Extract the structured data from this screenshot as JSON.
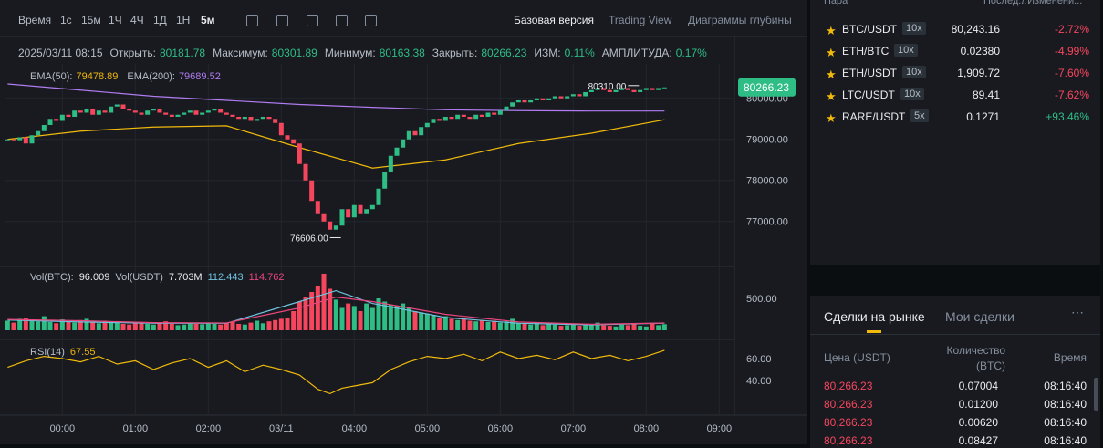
{
  "toolbar": {
    "intervals": [
      "Время",
      "1с",
      "15м",
      "1Ч",
      "4Ч",
      "1Д",
      "1Н",
      "5м"
    ],
    "views": [
      "Базовая версия",
      "Trading View",
      "Диаграммы глубины"
    ]
  },
  "ohlc": {
    "date": "2025/03/11 08:15",
    "items": [
      {
        "label": "Открыть:",
        "value": "80181.78"
      },
      {
        "label": "Максимум:",
        "value": "80301.89"
      },
      {
        "label": "Минимум:",
        "value": "80163.38"
      },
      {
        "label": "Закрыть:",
        "value": "80266.23"
      },
      {
        "label": "ИЗМ:",
        "value": "0.11%"
      },
      {
        "label": "АМПЛИТУДА:",
        "value": "0.17%"
      }
    ]
  },
  "chart_data": {
    "type": "candlestick",
    "ema": [
      {
        "name": "EMA(50):",
        "value_label": "79478.89",
        "color": "#f0b90b",
        "x": [
          0,
          12,
          24,
          36,
          48,
          60,
          72,
          84,
          96,
          108
        ],
        "values": [
          79000,
          79200,
          79300,
          79330,
          78800,
          78300,
          78500,
          78900,
          79150,
          79478.89
        ]
      },
      {
        "name": "EMA(200):",
        "value_label": "79689.52",
        "color": "#b07cf0",
        "x": [
          0,
          12,
          24,
          36,
          48,
          60,
          72,
          84,
          96,
          108
        ],
        "values": [
          80350,
          80200,
          80050,
          79950,
          79850,
          79780,
          79720,
          79700,
          79690,
          79689.52
        ]
      }
    ],
    "close": [
      79000,
      78980,
      79050,
      78900,
      79100,
      79200,
      79350,
      79500,
      79450,
      79600,
      79550,
      79700,
      79650,
      79750,
      79600,
      79700,
      79650,
      79800,
      79850,
      79750,
      79700,
      79650,
      79600,
      79700,
      79750,
      79650,
      79600,
      79550,
      79600,
      79650,
      79700,
      79600,
      79650,
      79700,
      79750,
      79650,
      79600,
      79550,
      79500,
      79550,
      79450,
      79500,
      79550,
      79500,
      79400,
      79100,
      79000,
      78900,
      78400,
      78000,
      77500,
      77200,
      77000,
      76800,
      76900,
      77300,
      77100,
      77400,
      77200,
      77300,
      77400,
      77800,
      78200,
      78600,
      78800,
      79000,
      79200,
      79100,
      79300,
      79400,
      79500,
      79450,
      79550,
      79500,
      79600,
      79550,
      79500,
      79600,
      79550,
      79650,
      79600,
      79700,
      79800,
      79900,
      79950,
      79900,
      79950,
      80000,
      79950,
      80000,
      80050,
      80000,
      80050,
      80100,
      80050,
      80150,
      80200,
      80250,
      80200,
      80150,
      80200,
      80250,
      80200,
      80150,
      80200,
      80250,
      80200,
      80250,
      80266.23
    ],
    "last_label": "80266.23",
    "annotations": [
      {
        "label": "80310.00",
        "value": 80310,
        "x": 102
      },
      {
        "label": "76606.00",
        "value": 76606,
        "x": 53
      }
    ],
    "xlim": [
      -0.5,
      119.5
    ],
    "xticks": [
      {
        "value": 9,
        "label": "00:00"
      },
      {
        "value": 21,
        "label": "01:00"
      },
      {
        "value": 33,
        "label": "02:00"
      },
      {
        "value": 45,
        "label": "03/11"
      },
      {
        "value": 57,
        "label": "04:00"
      },
      {
        "value": 69,
        "label": "05:00"
      },
      {
        "value": 81,
        "label": "06:00"
      },
      {
        "value": 93,
        "label": "07:00"
      },
      {
        "value": 105,
        "label": "08:00"
      },
      {
        "value": 117,
        "label": "09:00"
      }
    ],
    "ylim": [
      75950,
      81394
    ],
    "yticks": [
      {
        "value": 77000,
        "label": "77000.00"
      },
      {
        "value": 78000,
        "label": "78000.00"
      },
      {
        "value": 79000,
        "label": "79000.00"
      },
      {
        "value": 80000,
        "label": "80000.00"
      }
    ],
    "volume": {
      "title": "Vol(BTC):",
      "value_label": "96.009",
      "usdt_title": "Vol(USDT)",
      "usdt_label": "7.703M",
      "ma": [
        {
          "label": "112.443",
          "color": "#6fc3df",
          "x": [
            0,
            12,
            24,
            36,
            48,
            54,
            60,
            72,
            84,
            96,
            108
          ],
          "values": [
            160,
            130,
            110,
            110,
            450,
            620,
            420,
            200,
            110,
            85,
            112.443
          ]
        },
        {
          "label": "114.762",
          "color": "#e8467c",
          "x": [
            0,
            12,
            24,
            36,
            48,
            54,
            60,
            72,
            84,
            96,
            108
          ],
          "values": [
            170,
            150,
            120,
            115,
            350,
            520,
            450,
            250,
            130,
            95,
            114.762
          ]
        }
      ],
      "values": [
        150,
        120,
        180,
        200,
        160,
        140,
        220,
        130,
        110,
        170,
        140,
        120,
        160,
        180,
        130,
        110,
        150,
        140,
        120,
        100,
        90,
        110,
        130,
        100,
        90,
        120,
        140,
        100,
        80,
        90,
        110,
        100,
        95,
        120,
        100,
        90,
        110,
        130,
        100,
        90,
        120,
        150,
        110,
        140,
        160,
        180,
        200,
        300,
        450,
        520,
        600,
        700,
        886,
        650,
        480,
        350,
        420,
        380,
        300,
        420,
        350,
        500,
        450,
        400,
        380,
        420,
        350,
        300,
        280,
        260,
        240,
        200,
        220,
        180,
        160,
        200,
        150,
        140,
        160,
        130,
        150,
        120,
        140,
        180,
        110,
        100,
        90,
        120,
        80,
        100,
        90,
        70,
        80,
        90,
        70,
        80,
        100,
        120,
        80,
        70,
        60,
        90,
        80,
        100,
        70,
        60,
        110,
        80,
        96.009
      ],
      "ylim": [
        0,
        957
      ],
      "yticks": [
        {
          "value": 500,
          "label": "500.00"
        }
      ]
    },
    "rsi": {
      "title": "RSI(14)",
      "value_label": "67.55",
      "color": "#f0b90b",
      "x": [
        0,
        3,
        6,
        9,
        12,
        15,
        18,
        21,
        24,
        27,
        30,
        33,
        36,
        39,
        42,
        45,
        48,
        51,
        53,
        55,
        57,
        60,
        63,
        66,
        69,
        72,
        75,
        78,
        81,
        84,
        87,
        90,
        93,
        96,
        99,
        102,
        105,
        108
      ],
      "values": [
        52,
        58,
        62,
        60,
        57,
        62,
        55,
        58,
        50,
        56,
        60,
        52,
        58,
        48,
        54,
        50,
        45,
        32,
        28,
        33,
        35,
        38,
        50,
        57,
        62,
        60,
        64,
        58,
        66,
        60,
        63,
        59,
        66,
        60,
        63,
        58,
        62,
        67.55
      ],
      "ylim": [
        12.5,
        75
      ],
      "yticks": [
        {
          "value": 40,
          "label": "40.00"
        },
        {
          "value": 60,
          "label": "60.00"
        }
      ]
    }
  },
  "pairs": {
    "headers": [
      "Пара",
      "Послед...",
      "/ Изменени..."
    ],
    "rows": [
      [
        "BTC/USDT",
        "10x",
        "80,243.16",
        "-2.72%"
      ],
      [
        "ETH/BTC",
        "10x",
        "0.02380",
        "-4.99%"
      ],
      [
        "ETH/USDT",
        "10x",
        "1,909.72",
        "-7.60%"
      ],
      [
        "LTC/USDT",
        "10x",
        "89.41",
        "-7.62%"
      ],
      [
        "RARE/USDT",
        "5x",
        "0.1271",
        "+93.46%"
      ]
    ]
  },
  "trades": {
    "tabs": [
      "Сделки на рынке",
      "Мои сделки"
    ],
    "headers": [
      "Цена (USDT)",
      "Количество (BTC)",
      "Время"
    ],
    "rows": [
      [
        "80,266.23",
        "0.07004",
        "08:16:40"
      ],
      [
        "80,266.23",
        "0.01200",
        "08:16:40"
      ],
      [
        "80,266.23",
        "0.00620",
        "08:16:40"
      ],
      [
        "80,266.23",
        "0.08427",
        "08:16:40"
      ]
    ]
  }
}
